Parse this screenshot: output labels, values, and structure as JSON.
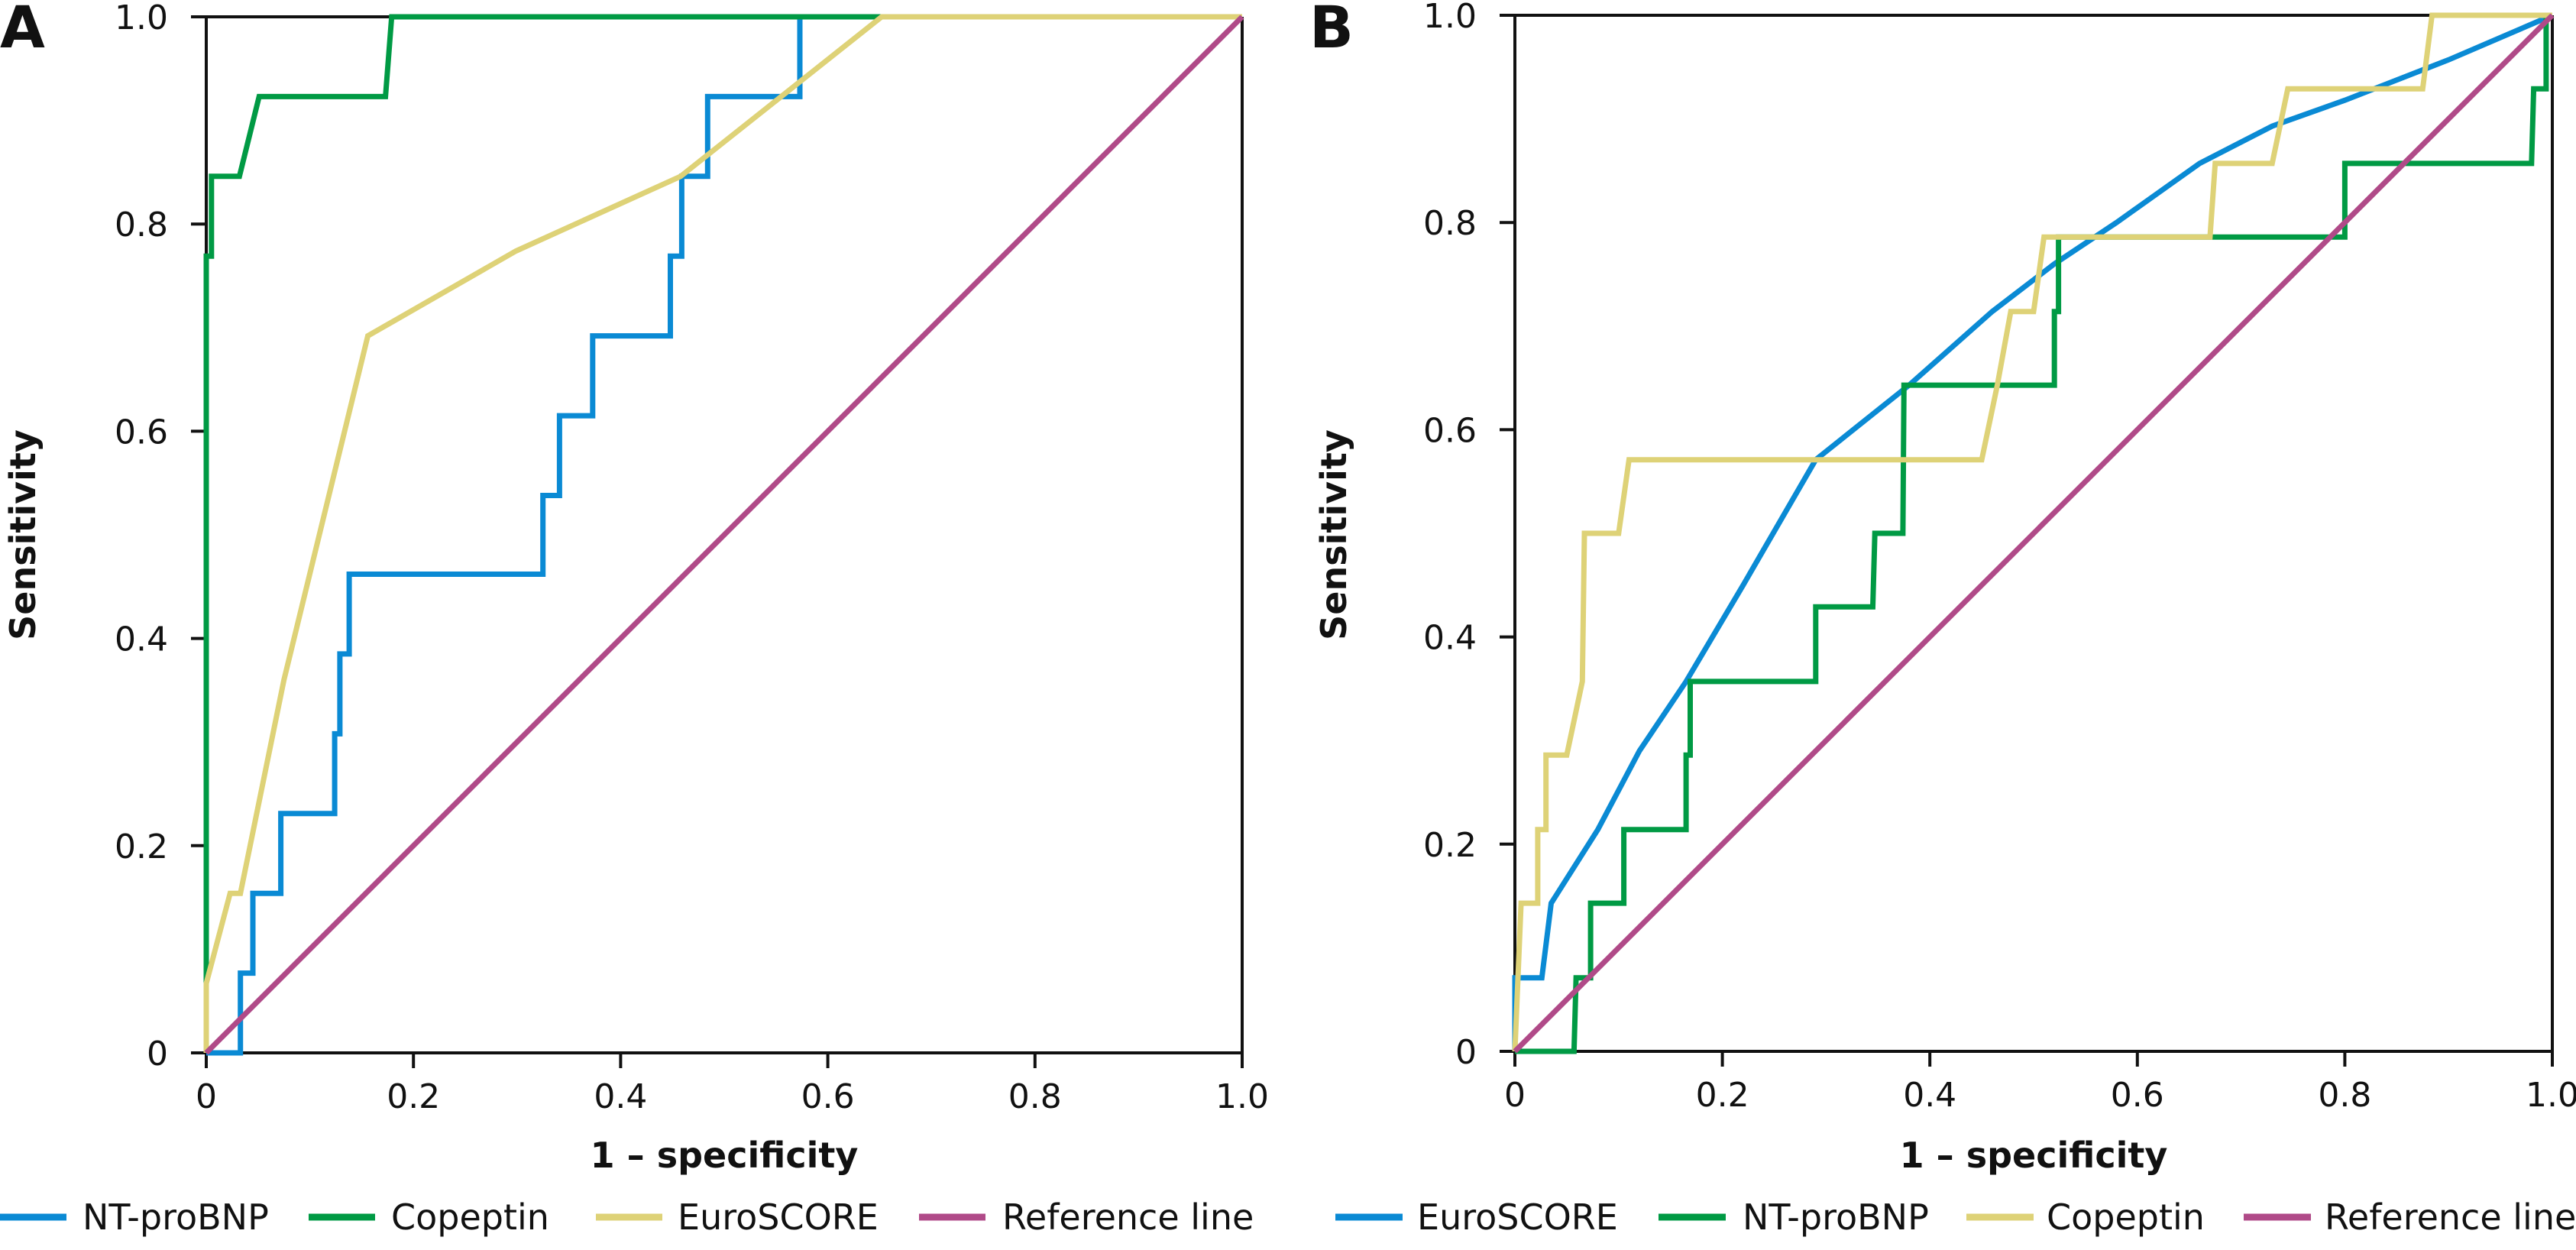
{
  "chart_data": [
    {
      "panel": "A",
      "type": "line",
      "title": "",
      "xlabel": "1 – specificity",
      "ylabel": "Sensitivity",
      "xlim": [
        0,
        1
      ],
      "ylim": [
        0,
        1
      ],
      "xticks": [
        0,
        0.2,
        0.4,
        0.6,
        0.8,
        1.0
      ],
      "xtick_labels": [
        "0",
        "0.2",
        "0.4",
        "0.6",
        "0.8",
        "1.0"
      ],
      "yticks": [
        0,
        0.2,
        0.4,
        0.6,
        0.8,
        1.0
      ],
      "ytick_labels": [
        "0",
        "0.2",
        "0.4",
        "0.6",
        "0.8",
        "1.0"
      ],
      "grid": false,
      "legend_position": "bottom",
      "series": [
        {
          "name": "NT-proBNP",
          "color": "#0a8ad4",
          "points": [
            [
              0,
              0
            ],
            [
              0.033,
              0
            ],
            [
              0.033,
              0.077
            ],
            [
              0.045,
              0.077
            ],
            [
              0.045,
              0.154
            ],
            [
              0.072,
              0.154
            ],
            [
              0.072,
              0.231
            ],
            [
              0.124,
              0.231
            ],
            [
              0.124,
              0.308
            ],
            [
              0.129,
              0.308
            ],
            [
              0.129,
              0.385
            ],
            [
              0.138,
              0.385
            ],
            [
              0.138,
              0.462
            ],
            [
              0.325,
              0.462
            ],
            [
              0.325,
              0.538
            ],
            [
              0.341,
              0.538
            ],
            [
              0.341,
              0.615
            ],
            [
              0.373,
              0.615
            ],
            [
              0.373,
              0.692
            ],
            [
              0.448,
              0.692
            ],
            [
              0.448,
              0.769
            ],
            [
              0.459,
              0.769
            ],
            [
              0.459,
              0.846
            ],
            [
              0.484,
              0.846
            ],
            [
              0.484,
              0.923
            ],
            [
              0.573,
              0.923
            ],
            [
              0.573,
              1.0
            ],
            [
              1,
              1
            ]
          ]
        },
        {
          "name": "Copeptin",
          "color": "#009a44",
          "points": [
            [
              0,
              0
            ],
            [
              0,
              0.769
            ],
            [
              0.005,
              0.769
            ],
            [
              0.005,
              0.846
            ],
            [
              0.032,
              0.846
            ],
            [
              0.051,
              0.923
            ],
            [
              0.173,
              0.923
            ],
            [
              0.179,
              1.0
            ],
            [
              1,
              1
            ]
          ]
        },
        {
          "name": "EuroSCORE",
          "color": "#ded277",
          "points": [
            [
              0,
              0
            ],
            [
              0,
              0.067
            ],
            [
              0.023,
              0.154
            ],
            [
              0.033,
              0.154
            ],
            [
              0.075,
              0.36
            ],
            [
              0.156,
              0.692
            ],
            [
              0.299,
              0.774
            ],
            [
              0.458,
              0.846
            ],
            [
              0.652,
              1.0
            ],
            [
              1,
              1
            ]
          ]
        },
        {
          "name": "Reference line",
          "color": "#b04a88",
          "points": [
            [
              0,
              0
            ],
            [
              1,
              1
            ]
          ]
        }
      ]
    },
    {
      "panel": "B",
      "type": "line",
      "title": "",
      "xlabel": "1 – specificity",
      "ylabel": "Sensitivity",
      "xlim": [
        0,
        1
      ],
      "ylim": [
        0,
        1
      ],
      "xticks": [
        0,
        0.2,
        0.4,
        0.6,
        0.8,
        1.0
      ],
      "xtick_labels": [
        "0",
        "0.2",
        "0.4",
        "0.6",
        "0.8",
        "1.0"
      ],
      "yticks": [
        0,
        0.2,
        0.4,
        0.6,
        0.8,
        1.0
      ],
      "ytick_labels": [
        "0",
        "0.2",
        "0.4",
        "0.6",
        "0.8",
        "1.0"
      ],
      "grid": false,
      "legend_position": "bottom",
      "series": [
        {
          "name": "EuroSCORE",
          "color": "#0a8ad4",
          "points": [
            [
              0,
              0
            ],
            [
              0,
              0.071
            ],
            [
              0.026,
              0.071
            ],
            [
              0.035,
              0.143
            ],
            [
              0.08,
              0.214
            ],
            [
              0.12,
              0.29
            ],
            [
              0.165,
              0.357
            ],
            [
              0.22,
              0.45
            ],
            [
              0.29,
              0.571
            ],
            [
              0.38,
              0.643
            ],
            [
              0.46,
              0.714
            ],
            [
              0.52,
              0.76
            ],
            [
              0.58,
              0.8
            ],
            [
              0.66,
              0.857
            ],
            [
              0.73,
              0.893
            ],
            [
              0.8,
              0.918
            ],
            [
              0.9,
              0.957
            ],
            [
              1,
              1
            ]
          ]
        },
        {
          "name": "NT-proBNP",
          "color": "#009a44",
          "points": [
            [
              0,
              0
            ],
            [
              0.057,
              0
            ],
            [
              0.059,
              0.071
            ],
            [
              0.073,
              0.071
            ],
            [
              0.073,
              0.143
            ],
            [
              0.105,
              0.143
            ],
            [
              0.105,
              0.214
            ],
            [
              0.165,
              0.214
            ],
            [
              0.165,
              0.286
            ],
            [
              0.169,
              0.286
            ],
            [
              0.169,
              0.357
            ],
            [
              0.29,
              0.357
            ],
            [
              0.29,
              0.429
            ],
            [
              0.345,
              0.429
            ],
            [
              0.347,
              0.5
            ],
            [
              0.374,
              0.5
            ],
            [
              0.375,
              0.643
            ],
            [
              0.52,
              0.643
            ],
            [
              0.52,
              0.714
            ],
            [
              0.524,
              0.714
            ],
            [
              0.524,
              0.786
            ],
            [
              0.8,
              0.786
            ],
            [
              0.8,
              0.857
            ],
            [
              0.98,
              0.857
            ],
            [
              0.982,
              0.929
            ],
            [
              0.994,
              0.929
            ],
            [
              0.994,
              1.0
            ],
            [
              1,
              1
            ]
          ]
        },
        {
          "name": "Copeptin",
          "color": "#ded277",
          "points": [
            [
              0,
              0
            ],
            [
              0.006,
              0.143
            ],
            [
              0.022,
              0.143
            ],
            [
              0.022,
              0.214
            ],
            [
              0.03,
              0.214
            ],
            [
              0.03,
              0.286
            ],
            [
              0.05,
              0.286
            ],
            [
              0.065,
              0.357
            ],
            [
              0.067,
              0.5
            ],
            [
              0.1,
              0.5
            ],
            [
              0.11,
              0.571
            ],
            [
              0.45,
              0.571
            ],
            [
              0.465,
              0.643
            ],
            [
              0.478,
              0.714
            ],
            [
              0.5,
              0.714
            ],
            [
              0.51,
              0.786
            ],
            [
              0.67,
              0.786
            ],
            [
              0.675,
              0.857
            ],
            [
              0.73,
              0.857
            ],
            [
              0.745,
              0.929
            ],
            [
              0.875,
              0.929
            ],
            [
              0.884,
              1.0
            ],
            [
              1,
              1
            ]
          ]
        },
        {
          "name": "Reference line",
          "color": "#b04a88",
          "points": [
            [
              0,
              0
            ],
            [
              1,
              1
            ]
          ]
        }
      ]
    }
  ]
}
